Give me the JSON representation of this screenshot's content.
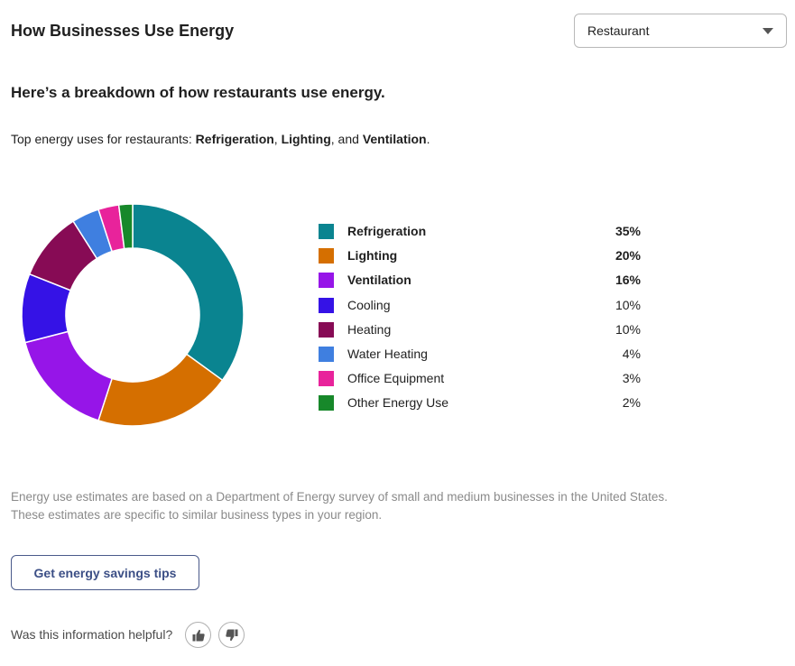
{
  "header": {
    "title": "How Businesses Use Energy",
    "business_type_select": {
      "selected": "Restaurant"
    }
  },
  "summary": {
    "heading": "Here’s a breakdown of how restaurants use energy.",
    "top_uses_prefix": "Top energy uses for restaurants: ",
    "top_uses": [
      "Refrigeration",
      "Lighting",
      "Ventilation"
    ],
    "sep_comma": ", ",
    "sep_and": ", and ",
    "end": "."
  },
  "chart_data": {
    "type": "pie",
    "variant": "donut",
    "categories": [
      "Refrigeration",
      "Lighting",
      "Ventilation",
      "Cooling",
      "Heating",
      "Water Heating",
      "Office Equipment",
      "Other Energy Use"
    ],
    "values": [
      35,
      20,
      16,
      10,
      10,
      4,
      3,
      2
    ],
    "value_labels": [
      "35%",
      "20%",
      "16%",
      "10%",
      "10%",
      "4%",
      "3%",
      "2%"
    ],
    "colors": [
      "#0a8490",
      "#d56f00",
      "#9615e8",
      "#3512e6",
      "#870b55",
      "#3f7fe0",
      "#e8239b",
      "#17882a"
    ],
    "bold": [
      true,
      true,
      true,
      false,
      false,
      false,
      false,
      false
    ],
    "legend_position": "right"
  },
  "footnote": {
    "line1": "Energy use estimates are based on a Department of Energy survey of small and medium businesses in the United States.",
    "line2": "These estimates are specific to similar business types in your region."
  },
  "cta": {
    "label": "Get energy savings tips"
  },
  "feedback": {
    "question": "Was this information helpful?",
    "icons": [
      "thumbs-up-icon",
      "thumbs-down-icon"
    ]
  }
}
